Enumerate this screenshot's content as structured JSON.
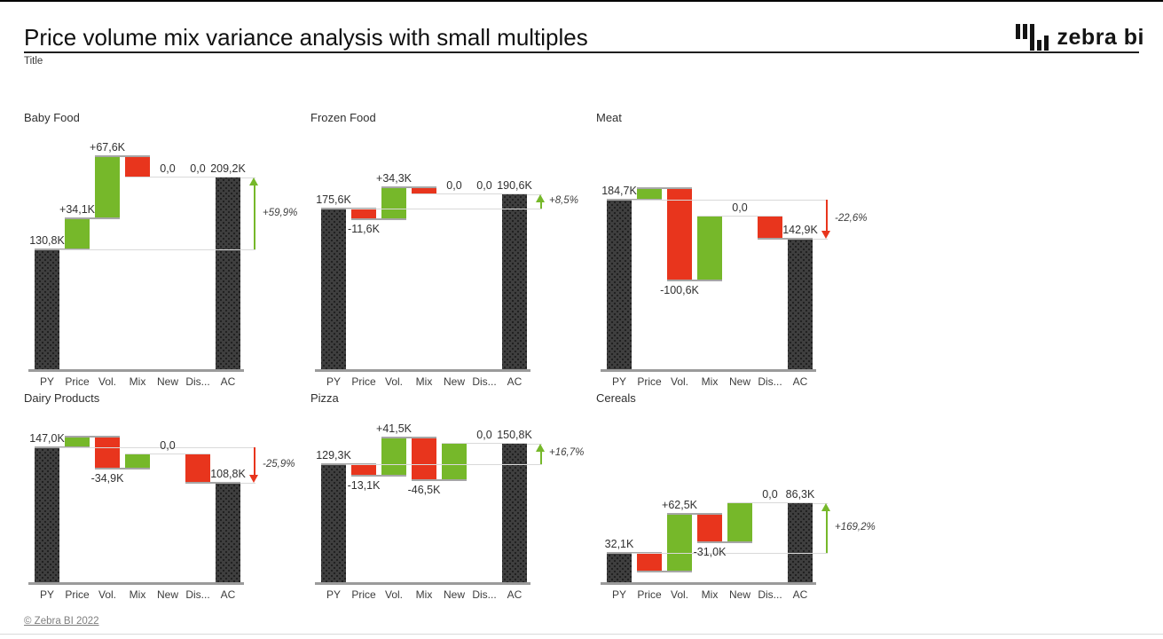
{
  "page": {
    "title": "Price volume mix variance analysis with small multiples",
    "subtitle": "Title",
    "logo_text": "zebra bi",
    "footer_link": "© Zebra BI 2022"
  },
  "colors": {
    "positive": "#76B82A",
    "negative": "#E8351D",
    "total": "#3F3F3F",
    "connector": "#A6A6A6",
    "connector_light": "#D9D9D9",
    "axis": "#9B9B9B"
  },
  "chart_data": {
    "type": "waterfall",
    "layout": "small-multiples 2 rows x 3 cols",
    "value_unit": "K",
    "decimal_separator": ",",
    "gridlines": false,
    "legend": false,
    "categories": [
      "PY",
      "Price",
      "Vol.",
      "Mix",
      "New",
      "Dis...",
      "AC"
    ],
    "charts": [
      {
        "title": "Baby Food",
        "row": 0,
        "col": 0,
        "values": [
          130.8,
          34.1,
          67.6,
          -23.3,
          0,
          0,
          209.2
        ],
        "labels": [
          "130,8K",
          "+34,1K",
          "+67,6K",
          null,
          "0,0",
          "0,0",
          "209,2K"
        ],
        "variance": {
          "label": "+59,9%",
          "direction": "up"
        }
      },
      {
        "title": "Frozen Food",
        "row": 0,
        "col": 1,
        "values": [
          175.6,
          -11.6,
          34.3,
          -7.7,
          0,
          0,
          190.6
        ],
        "labels": [
          "175,6K",
          "-11,6K",
          "+34,3K",
          null,
          "0,0",
          "0,0",
          "190,6K"
        ],
        "variance": {
          "label": "+8,5%",
          "direction": "up"
        }
      },
      {
        "title": "Meat",
        "row": 0,
        "col": 2,
        "values": [
          184.7,
          13.1,
          -100.6,
          69.2,
          0,
          -23.5,
          142.9
        ],
        "labels": [
          "184,7K",
          null,
          "-100,6K",
          null,
          "0,0",
          null,
          "142,9K"
        ],
        "variance": {
          "label": "-22,6%",
          "direction": "down"
        }
      },
      {
        "title": "Dairy Products",
        "row": 1,
        "col": 0,
        "values": [
          147.0,
          12.2,
          -34.9,
          15.0,
          0,
          -30.5,
          108.8
        ],
        "labels": [
          "147,0K",
          null,
          "-34,9K",
          null,
          "0,0",
          null,
          "108,8K"
        ],
        "variance": {
          "label": "-25,9%",
          "direction": "down"
        }
      },
      {
        "title": "Pizza",
        "row": 1,
        "col": 1,
        "values": [
          129.3,
          -13.1,
          41.5,
          -46.5,
          39.6,
          0,
          150.8
        ],
        "labels": [
          "129,3K",
          "-13,1K",
          "+41,5K",
          "-46,5K",
          null,
          "0,0",
          "150,8K"
        ],
        "variance": {
          "label": "+16,7%",
          "direction": "up"
        }
      },
      {
        "title": "Cereals",
        "row": 1,
        "col": 2,
        "values": [
          32.1,
          -20.2,
          62.5,
          -31.0,
          42.9,
          0,
          86.3
        ],
        "labels": [
          "32,1K",
          null,
          "+62,5K",
          "-31,0K",
          null,
          "0,0",
          "86,3K"
        ],
        "variance": {
          "label": "+169,2%",
          "direction": "up"
        }
      }
    ]
  }
}
